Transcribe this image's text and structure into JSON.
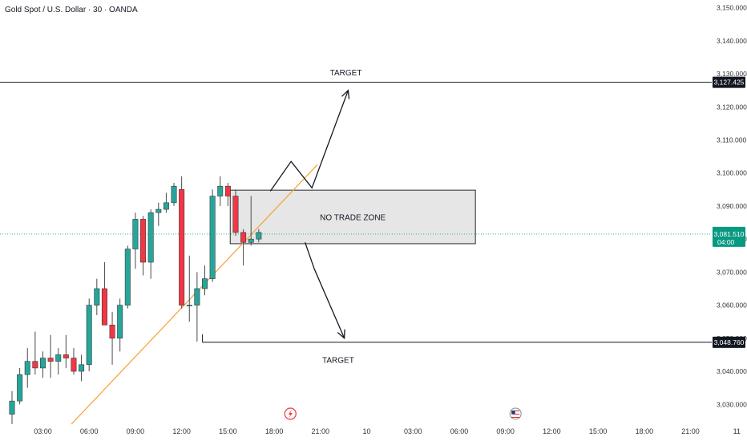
{
  "header": {
    "symbol_title": "Gold Spot / U.S. Dollar · 30 · OANDA"
  },
  "colors": {
    "up": "#26a69a",
    "down": "#f23645",
    "wick": "#4a4a4a",
    "trendline": "#f5a033",
    "level": "#131722",
    "current_price": "#089981",
    "zone_fill": "#e6e6e6",
    "zone_border": "#2a2a2a",
    "axis_text": "#333333",
    "dotted_line": "#2fb59a"
  },
  "chart_data": {
    "type": "candlestick",
    "ylim": [
      3024,
      3155
    ],
    "y_ticks": [
      "3,030.000",
      "3,040.000",
      "3,050.000",
      "3,060.000",
      "3,070.000",
      "3,080.000",
      "3,090.000",
      "3,100.000",
      "3,110.000",
      "3,120.000",
      "3,130.000",
      "3,140.000",
      "3,150.000"
    ],
    "y_tick_values": [
      3030,
      3040,
      3050,
      3060,
      3070,
      3080,
      3090,
      3100,
      3110,
      3120,
      3130,
      3140,
      3150
    ],
    "x_ticks": [
      {
        "label": "03:00",
        "t": 4
      },
      {
        "label": "06:00",
        "t": 10
      },
      {
        "label": "09:00",
        "t": 16
      },
      {
        "label": "12:00",
        "t": 22
      },
      {
        "label": "15:00",
        "t": 28
      },
      {
        "label": "18:00",
        "t": 34
      },
      {
        "label": "21:00",
        "t": 40
      },
      {
        "label": "10",
        "t": 46
      },
      {
        "label": "03:00",
        "t": 52
      },
      {
        "label": "06:00",
        "t": 58
      },
      {
        "label": "09:00",
        "t": 64
      },
      {
        "label": "12:00",
        "t": 70
      },
      {
        "label": "15:00",
        "t": 76
      },
      {
        "label": "18:00",
        "t": 82
      },
      {
        "label": "21:00",
        "t": 88
      },
      {
        "label": "11",
        "t": 94
      }
    ],
    "candles": [
      {
        "o": 3027,
        "h": 3034,
        "l": 3024,
        "c": 3031
      },
      {
        "o": 3031,
        "h": 3041,
        "l": 3030,
        "c": 3039
      },
      {
        "o": 3039,
        "h": 3047,
        "l": 3035,
        "c": 3043
      },
      {
        "o": 3043,
        "h": 3052,
        "l": 3039,
        "c": 3041
      },
      {
        "o": 3041,
        "h": 3046,
        "l": 3038,
        "c": 3044
      },
      {
        "o": 3044,
        "h": 3051,
        "l": 3038,
        "c": 3043
      },
      {
        "o": 3043,
        "h": 3047,
        "l": 3039,
        "c": 3045
      },
      {
        "o": 3045,
        "h": 3051,
        "l": 3041,
        "c": 3044
      },
      {
        "o": 3044,
        "h": 3047,
        "l": 3039,
        "c": 3040
      },
      {
        "o": 3040,
        "h": 3045,
        "l": 3037,
        "c": 3042
      },
      {
        "o": 3042,
        "h": 3062,
        "l": 3040,
        "c": 3060
      },
      {
        "o": 3060,
        "h": 3068,
        "l": 3057,
        "c": 3065
      },
      {
        "o": 3065,
        "h": 3073,
        "l": 3055,
        "c": 3054
      },
      {
        "o": 3054,
        "h": 3058,
        "l": 3042,
        "c": 3050
      },
      {
        "o": 3050,
        "h": 3062,
        "l": 3046,
        "c": 3060
      },
      {
        "o": 3060,
        "h": 3078,
        "l": 3059,
        "c": 3077
      },
      {
        "o": 3077,
        "h": 3088,
        "l": 3071,
        "c": 3086
      },
      {
        "o": 3086,
        "h": 3087,
        "l": 3069,
        "c": 3073
      },
      {
        "o": 3073,
        "h": 3089,
        "l": 3068,
        "c": 3088
      },
      {
        "o": 3088,
        "h": 3091,
        "l": 3084,
        "c": 3089
      },
      {
        "o": 3089,
        "h": 3094,
        "l": 3088,
        "c": 3091
      },
      {
        "o": 3091,
        "h": 3097,
        "l": 3090,
        "c": 3096
      },
      {
        "o": 3095,
        "h": 3099,
        "l": 3059,
        "c": 3060
      },
      {
        "o": 3060,
        "h": 3075,
        "l": 3055,
        "c": 3060
      },
      {
        "o": 3060,
        "h": 3070,
        "l": 3049,
        "c": 3065
      },
      {
        "o": 3065,
        "h": 3072,
        "l": 3063,
        "c": 3068
      },
      {
        "o": 3068,
        "h": 3095,
        "l": 3067,
        "c": 3093
      },
      {
        "o": 3093,
        "h": 3099,
        "l": 3090,
        "c": 3096
      },
      {
        "o": 3096,
        "h": 3097,
        "l": 3090,
        "c": 3093
      },
      {
        "o": 3093,
        "h": 3095,
        "l": 3081,
        "c": 3082
      },
      {
        "o": 3082,
        "h": 3083,
        "l": 3072,
        "c": 3079
      },
      {
        "o": 3079,
        "h": 3093,
        "l": 3078,
        "c": 3080
      },
      {
        "o": 3080,
        "h": 3083,
        "l": 3079,
        "c": 3082
      }
    ],
    "current_price": {
      "value": 3081.51,
      "label": "3,081.510",
      "countdown": "04:00"
    },
    "levels": [
      {
        "value": 3127.425,
        "label": "3,127.425",
        "t_start": -2
      },
      {
        "value": 3048.76,
        "label": "3,048.760",
        "t_start": 24.7
      }
    ],
    "trendline": {
      "t1": 7.7,
      "p1": 3024,
      "t2": 39.6,
      "p2": 3102.5
    },
    "zone": {
      "t1": 28.3,
      "t2": 60.1,
      "p1": 3094.8,
      "p2": 3078.6,
      "label": "NO TRADE ZONE"
    },
    "targets": [
      {
        "label": "TARGET",
        "value": 3130.5,
        "t": 43.3
      },
      {
        "label": "TARGET",
        "value": 3043.5,
        "t": 42.3
      }
    ],
    "paths": {
      "up": [
        {
          "t": 33.5,
          "p": 3094.5
        },
        {
          "t": 36.2,
          "p": 3103.5
        },
        {
          "t": 38.9,
          "p": 3095.5
        },
        {
          "t": 43.6,
          "p": 3125
        }
      ],
      "down": [
        {
          "t": 38.0,
          "p": 3079.0
        },
        {
          "t": 39.2,
          "p": 3071.0
        },
        {
          "t": 43.1,
          "p": 3050.0
        }
      ]
    },
    "event_markers": [
      {
        "t": 36.1,
        "icon": "flash-icon"
      },
      {
        "t": 65.3,
        "icon": "us-flag-icon"
      }
    ]
  }
}
